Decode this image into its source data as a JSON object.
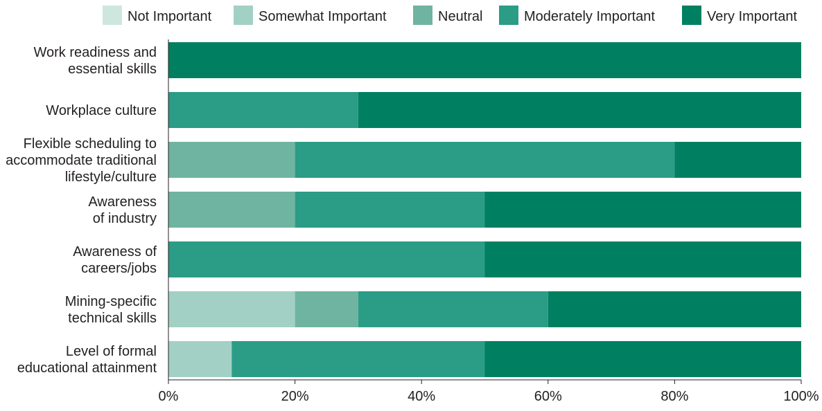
{
  "chart_data": {
    "type": "bar",
    "orientation": "horizontal",
    "stacked": true,
    "categories": [
      [
        "Work readiness and",
        "essential skills"
      ],
      [
        "Workplace culture"
      ],
      [
        "Flexible scheduling to",
        "accommodate traditional",
        "lifestyle/culture"
      ],
      [
        "Awareness",
        "of industry"
      ],
      [
        "Awareness of",
        "careers/jobs"
      ],
      [
        "Mining-specific",
        "technical skills"
      ],
      [
        "Level of formal",
        "educational attainment"
      ]
    ],
    "series": [
      {
        "name": "Not Important",
        "color": "#cde7df",
        "values": [
          0,
          0,
          0,
          0,
          0,
          0,
          0
        ]
      },
      {
        "name": "Somewhat Important",
        "color": "#a3d0c4",
        "values": [
          0,
          0,
          0,
          0,
          0,
          20,
          10
        ]
      },
      {
        "name": "Neutral",
        "color": "#6fb4a1",
        "values": [
          0,
          0,
          20,
          20,
          0,
          10,
          0
        ]
      },
      {
        "name": "Moderately Important",
        "color": "#2b9c85",
        "values": [
          0,
          30,
          60,
          30,
          50,
          30,
          40
        ]
      },
      {
        "name": "Very Important",
        "color": "#008061",
        "values": [
          100,
          70,
          20,
          50,
          50,
          40,
          50
        ]
      }
    ],
    "x_ticks": [
      "0%",
      "20%",
      "40%",
      "60%",
      "80%",
      "100%"
    ],
    "xlim": [
      0,
      100
    ],
    "legend_position": "top",
    "grid": false
  }
}
